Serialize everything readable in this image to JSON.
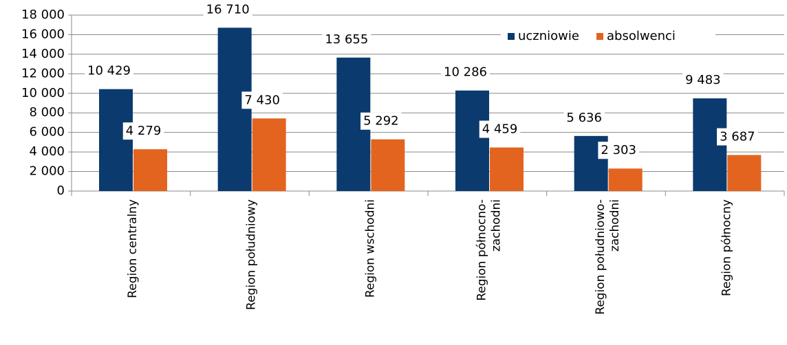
{
  "chart_data": {
    "type": "bar",
    "categories": [
      [
        "Region centralny"
      ],
      [
        "Region południowy"
      ],
      [
        "Region wschodni"
      ],
      [
        "Region północno-",
        "zachodni"
      ],
      [
        "Region południowo-",
        "zachodni"
      ],
      [
        "Region północny"
      ]
    ],
    "series": [
      {
        "name": "uczniowie",
        "color": "#0b3a6e",
        "values": [
          10429,
          16710,
          13655,
          10286,
          5636,
          9483
        ],
        "value_labels": [
          "10 429",
          "16 710",
          "13 655",
          "10 286",
          "5 636",
          "9 483"
        ]
      },
      {
        "name": "absolwenci",
        "color": "#e3641f",
        "values": [
          4279,
          7430,
          5292,
          4459,
          2303,
          3687
        ],
        "value_labels": [
          "4 279",
          "7 430",
          "5 292",
          "4 459",
          "2 303",
          "3 687"
        ]
      }
    ],
    "ylim": [
      0,
      18000
    ],
    "yticks": [
      0,
      {
        "value": 2000,
        "label": "2 000"
      },
      {
        "value": 4000,
        "label": "4 000"
      },
      {
        "value": 6000,
        "label": "6 000"
      },
      {
        "value": 8000,
        "label": "8 000"
      },
      {
        "value": 10000,
        "label": "10 000"
      },
      {
        "value": 12000,
        "label": "12 000"
      },
      {
        "value": 14000,
        "label": "14 000"
      },
      {
        "value": 16000,
        "label": "16 000"
      },
      {
        "value": 18000,
        "label": "18 000"
      }
    ],
    "grid": true,
    "legend": "top-right"
  }
}
